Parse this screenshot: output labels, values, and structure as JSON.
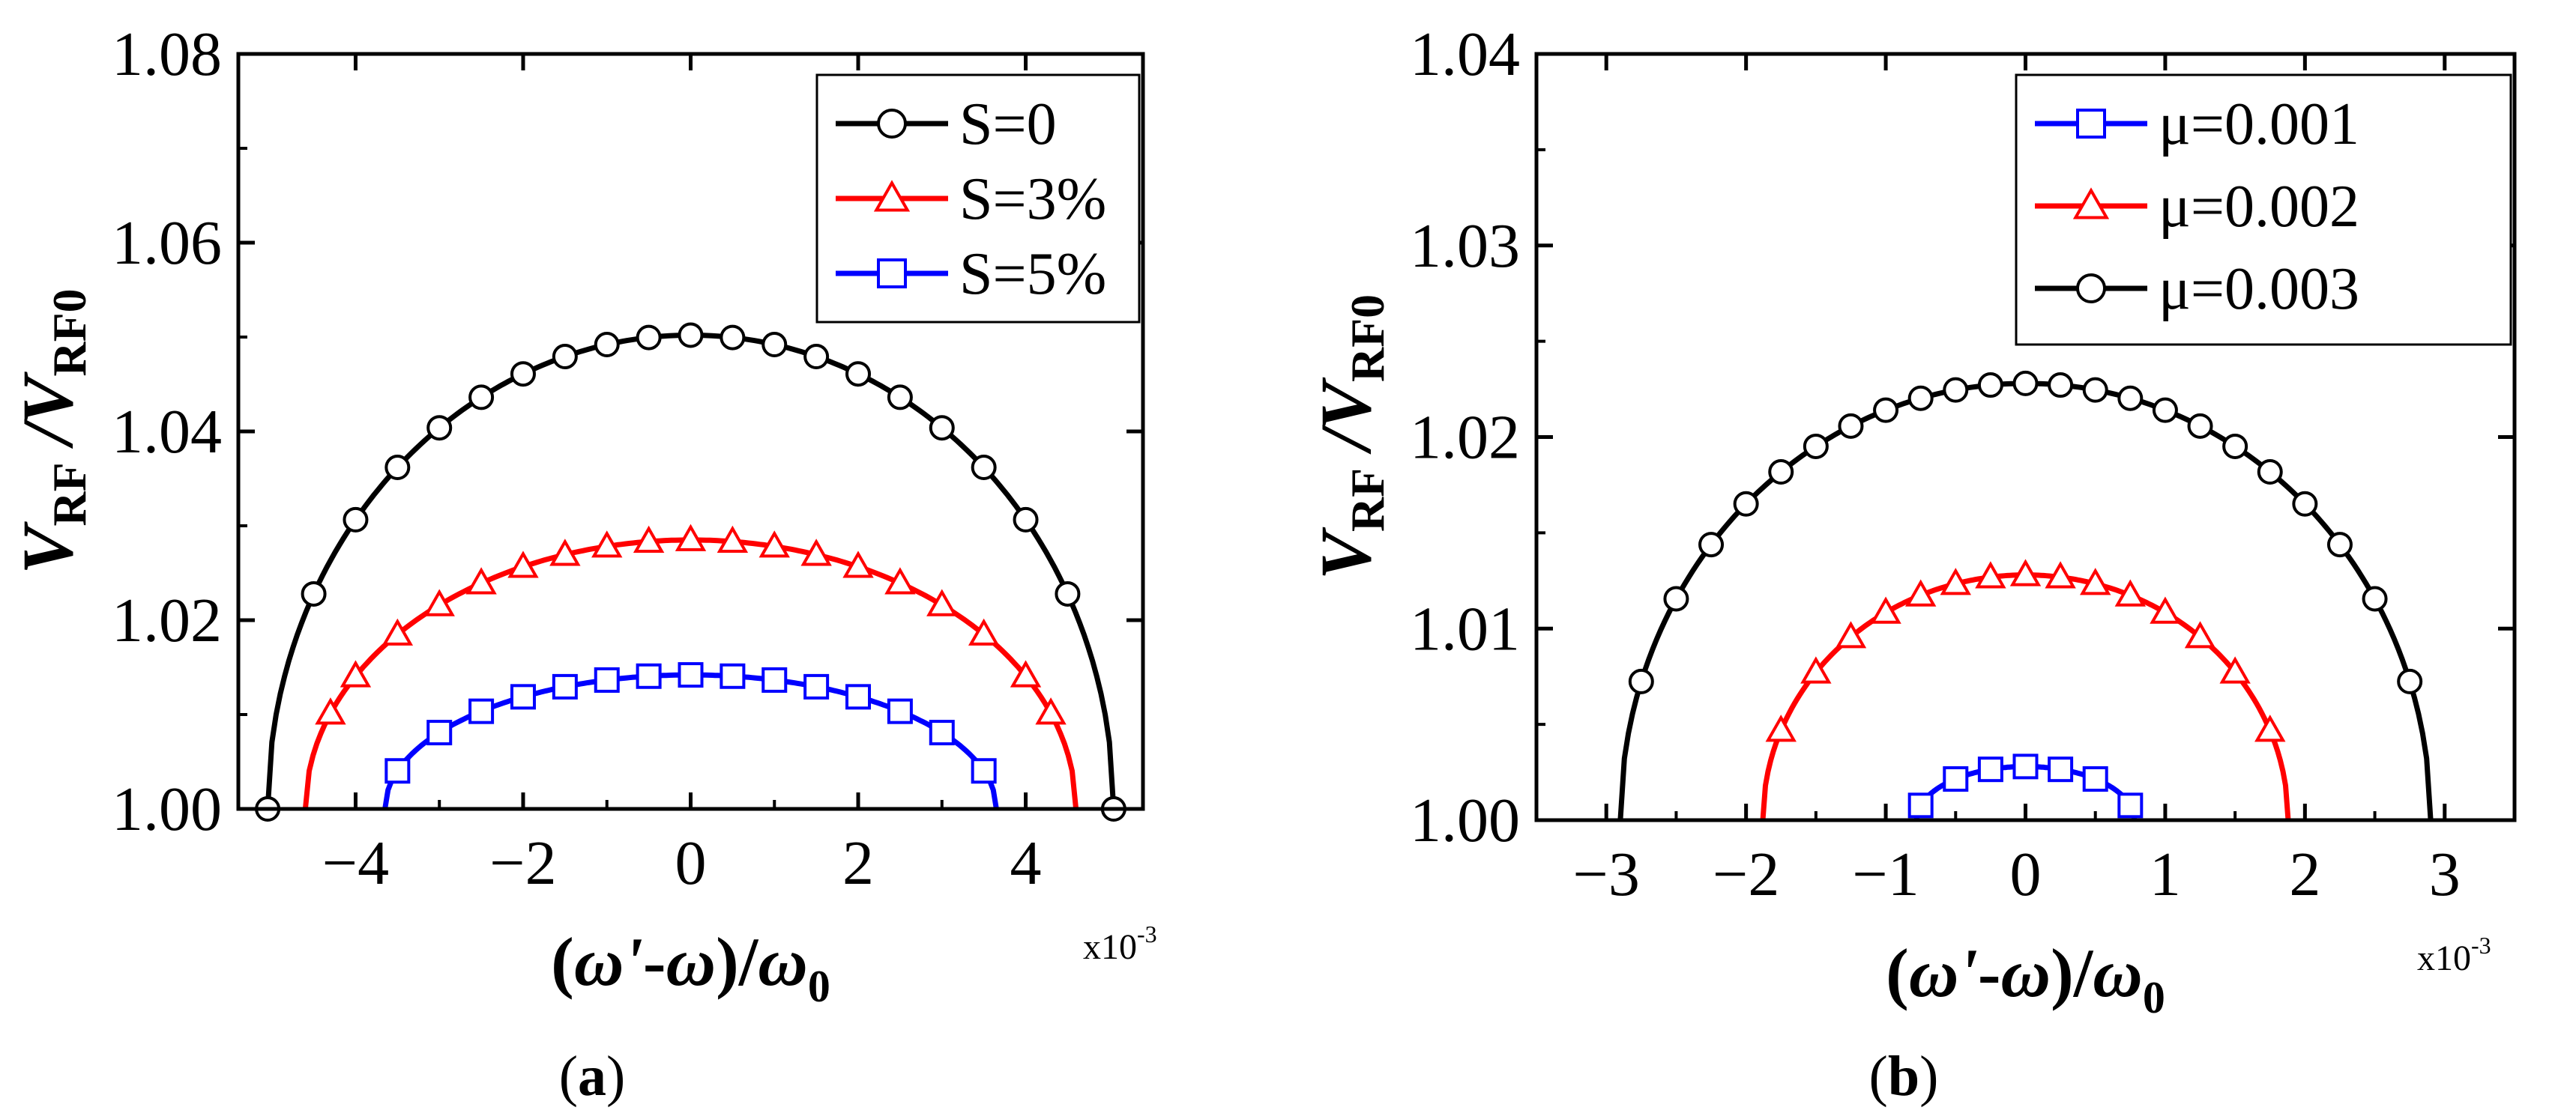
{
  "chart_data": [
    {
      "panel": "a",
      "type": "line",
      "caption_letter": "a",
      "xlabel": {
        "prefix": "(",
        "omega_prime": "ω'",
        "dash": "-",
        "omega": "ω",
        "mid": ")/",
        "omega0": "ω",
        "sub": "0"
      },
      "ylabel": {
        "v1": "V",
        "sub1": "RF",
        "slash": " /",
        "v2": "V",
        "sub2": "RF0"
      },
      "multiplier": {
        "base": "x10",
        "exp": "-3"
      },
      "xlim": [
        -5.4,
        5.4
      ],
      "ylim": [
        1.0,
        1.08
      ],
      "xticks": [
        -4,
        -2,
        0,
        2,
        4
      ],
      "xtick_labels": [
        "−4",
        "−2",
        "0",
        "2",
        "4"
      ],
      "yticks": [
        1.0,
        1.02,
        1.04,
        1.06,
        1.08
      ],
      "ytick_labels": [
        "1.00",
        "1.02",
        "1.04",
        "1.06",
        "1.08"
      ],
      "legend_position": "top-right",
      "series": [
        {
          "name": "S=0",
          "color": "#000000",
          "marker": "circle",
          "halfwidth": 5.05,
          "peak": 0.0502,
          "marker_x": [
            -5.05,
            -4.5,
            -4.0,
            -3.5,
            -3.0,
            -2.5,
            -2.0,
            -1.5,
            -1.0,
            -0.5,
            0.0,
            0.5,
            1.0,
            1.5,
            2.0,
            2.5,
            3.0,
            3.5,
            4.0,
            4.5,
            5.05
          ]
        },
        {
          "name": "S=3%",
          "color": "#ff0000",
          "marker": "triangle",
          "halfwidth": 4.6,
          "peak": 0.0285,
          "marker_x": [
            -4.3,
            -4.0,
            -3.5,
            -3.0,
            -2.5,
            -2.0,
            -1.5,
            -1.0,
            -0.5,
            0.0,
            0.5,
            1.0,
            1.5,
            2.0,
            2.5,
            3.0,
            3.5,
            4.0,
            4.3
          ]
        },
        {
          "name": "S=5%",
          "color": "#0000ff",
          "marker": "square",
          "halfwidth": 3.65,
          "peak": 0.0142,
          "marker_x": [
            -3.5,
            -3.0,
            -2.5,
            -2.0,
            -1.5,
            -1.0,
            -0.5,
            0.0,
            0.5,
            1.0,
            1.5,
            2.0,
            2.5,
            3.0,
            3.5
          ]
        }
      ]
    },
    {
      "panel": "b",
      "type": "line",
      "caption_letter": "b",
      "xlabel": {
        "prefix": "(",
        "omega_prime": "ω'",
        "dash": "-",
        "omega": "ω",
        "mid": ")/",
        "omega0": "ω",
        "sub": "0"
      },
      "ylabel": {
        "v1": "V",
        "sub1": "RF",
        "slash": " /",
        "v2": "V",
        "sub2": "RF0"
      },
      "multiplier": {
        "base": "x10",
        "exp": "-3"
      },
      "xlim": [
        -3.5,
        3.5
      ],
      "ylim": [
        1.0,
        1.04
      ],
      "xticks": [
        -3,
        -2,
        -1,
        0,
        1,
        2,
        3
      ],
      "xtick_labels": [
        "−3",
        "−2",
        "−1",
        "0",
        "1",
        "2",
        "3"
      ],
      "yticks": [
        1.0,
        1.01,
        1.02,
        1.03,
        1.04
      ],
      "ytick_labels": [
        "1.00",
        "1.01",
        "1.02",
        "1.03",
        "1.04"
      ],
      "legend_position": "top-right",
      "series": [
        {
          "name": "μ=0.001",
          "color": "#0000ff",
          "marker": "square",
          "halfwidth": 0.78,
          "peak": 0.0028,
          "marker_x": [
            -0.75,
            -0.5,
            -0.25,
            0.0,
            0.25,
            0.5,
            0.75
          ]
        },
        {
          "name": "μ=0.002",
          "color": "#ff0000",
          "marker": "triangle",
          "halfwidth": 1.88,
          "peak": 0.0128,
          "marker_x": [
            -1.75,
            -1.5,
            -1.25,
            -1.0,
            -0.75,
            -0.5,
            -0.25,
            0.0,
            0.25,
            0.5,
            0.75,
            1.0,
            1.25,
            1.5,
            1.75
          ]
        },
        {
          "name": "μ=0.003",
          "color": "#000000",
          "marker": "circle",
          "halfwidth": 2.9,
          "peak": 0.0228,
          "marker_x": [
            -2.75,
            -2.5,
            -2.25,
            -2.0,
            -1.75,
            -1.5,
            -1.25,
            -1.0,
            -0.75,
            -0.5,
            -0.25,
            0.0,
            0.25,
            0.5,
            0.75,
            1.0,
            1.25,
            1.5,
            1.75,
            2.0,
            2.25,
            2.5,
            2.75
          ]
        }
      ]
    }
  ]
}
